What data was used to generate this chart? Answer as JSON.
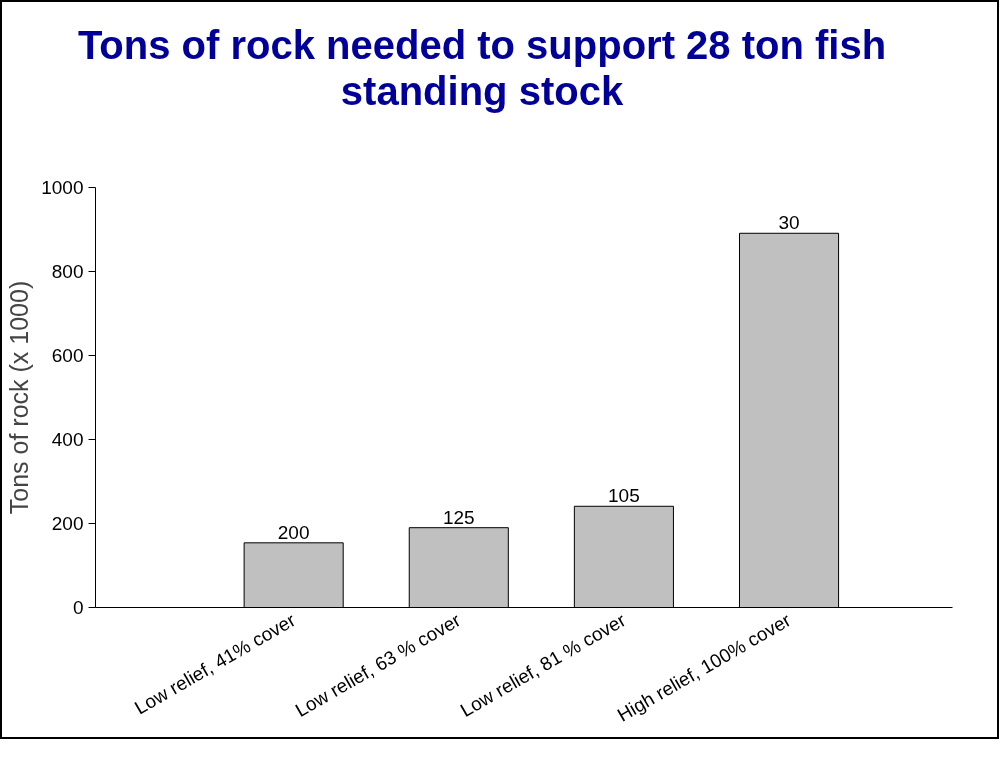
{
  "chart_data": {
    "type": "bar",
    "title": "Tons of rock needed to support 28 ton fish standing stock",
    "ylabel": "Tons of rock (x 1000)",
    "categories": [
      "Low relief, 41% cover",
      "Low relief, 63 % cover",
      "Low relief, 81 % cover",
      "High relief, 100% cover"
    ],
    "values": [
      154,
      190,
      241,
      891
    ],
    "annotations": [
      {
        "text": "200",
        "x": "Low relief, 41% cover",
        "y": 154
      },
      {
        "text": "125",
        "x": "Low relief, 63 % cover",
        "y": 190
      },
      {
        "text": "105",
        "x": "Low relief, 81 % cover",
        "y": 241
      },
      {
        "text": "30",
        "x": "High relief, 100% cover",
        "y": 891
      }
    ],
    "color": "#c0c0c0",
    "ylim": [
      0,
      1000
    ],
    "yticks": [
      0,
      200,
      400,
      600,
      800,
      1000
    ],
    "grid": false
  }
}
